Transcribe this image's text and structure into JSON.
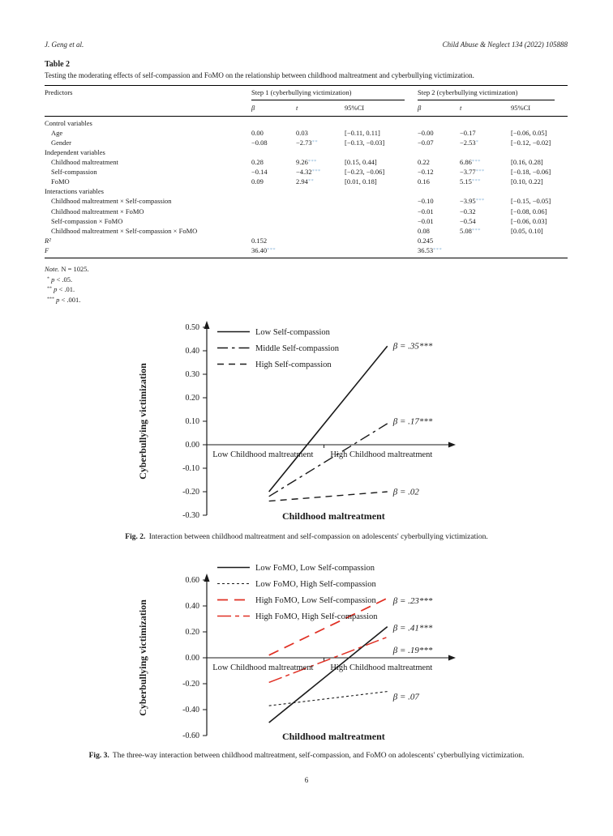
{
  "page": {
    "header_left": "J. Geng et al.",
    "header_right": "Child Abuse & Neglect 134 (2022) 105888",
    "page_number": "6"
  },
  "star_color": "#8fb8da",
  "table": {
    "title": "Table 2",
    "caption": "Testing the moderating effects of self-compassion and FoMO on the relationship between childhood maltreatment and cyberbullying victimization.",
    "col_predictors": "Predictors",
    "group1": "Step 1 (cyberbullying victimization)",
    "group2": "Step 2 (cyberbullying victimization)",
    "subheaders": [
      "β",
      "t",
      "95%CI",
      "β",
      "t",
      "95%CI"
    ],
    "rows": [
      {
        "label": "Control variables",
        "type": "section",
        "cells": [
          "",
          "",
          "",
          "",
          "",
          ""
        ]
      },
      {
        "label": "Age",
        "type": "item",
        "cells": [
          "0.00",
          "0.03",
          "[−0.11, 0.11]",
          "−0.00",
          "−0.17",
          "[−0.06, 0.05]"
        ]
      },
      {
        "label": "Gender",
        "type": "item",
        "cells": [
          "−0.08",
          "−2.73**",
          "[−0.13, −0.03]",
          "−0.07",
          "−2.53*",
          "[−0.12, −0.02]"
        ]
      },
      {
        "label": "Independent variables",
        "type": "section",
        "cells": [
          "",
          "",
          "",
          "",
          "",
          ""
        ]
      },
      {
        "label": "Childhood maltreatment",
        "type": "item",
        "cells": [
          "0.28",
          "9.26***",
          "[0.15, 0.44]",
          "0.22",
          "6.86***",
          "[0.16, 0.28]"
        ]
      },
      {
        "label": "Self-compassion",
        "type": "item",
        "cells": [
          "−0.14",
          "−4.32***",
          "[−0.23, −0.06]",
          "−0.12",
          "−3.77***",
          "[−0.18, −0.06]"
        ]
      },
      {
        "label": "FoMO",
        "type": "item",
        "cells": [
          "0.09",
          "2.94**",
          "[0.01, 0.18]",
          "0.16",
          "5.15***",
          "[0.10, 0.22]"
        ]
      },
      {
        "label": "Interactions variables",
        "type": "section",
        "cells": [
          "",
          "",
          "",
          "",
          "",
          ""
        ]
      },
      {
        "label": "Childhood maltreatment × Self-compassion",
        "type": "item",
        "cells": [
          "",
          "",
          "",
          "−0.10",
          "−3.95***",
          "[−0.15, −0.05]"
        ]
      },
      {
        "label": "Childhood maltreatment × FoMO",
        "type": "item",
        "cells": [
          "",
          "",
          "",
          "−0.01",
          "−0.32",
          "[−0.08, 0.06]"
        ]
      },
      {
        "label": "Self-compassion × FoMO",
        "type": "item",
        "cells": [
          "",
          "",
          "",
          "−0.01",
          "−0.54",
          "[−0.06, 0.03]"
        ]
      },
      {
        "label": "Childhood maltreatment × Self-compassion × FoMO",
        "type": "item",
        "cells": [
          "",
          "",
          "",
          "0.08",
          "5.08***",
          "[0.05, 0.10]"
        ]
      },
      {
        "label": "R²",
        "type": "stat",
        "cells": [
          "0.152",
          "",
          "",
          "0.245",
          "",
          ""
        ]
      },
      {
        "label": "F",
        "type": "stat",
        "cells": [
          "36.40***",
          "",
          "",
          "36.53***",
          "",
          ""
        ]
      }
    ],
    "note": {
      "label": "Note.",
      "text": "N = 1025."
    },
    "footnotes": [
      {
        "stars": "*",
        "var": "p",
        "text": "< .05."
      },
      {
        "stars": "**",
        "var": "p",
        "text": "< .01."
      },
      {
        "stars": "***",
        "var": "p",
        "text": "< .001."
      }
    ]
  },
  "chart_data": [
    {
      "type": "line",
      "fig_label": "Fig. 2.",
      "caption": "Interaction between childhood maltreatment and self-compassion on adolescents' cyberbullying victimization.",
      "xlabel": "Childhood maltreatment",
      "ylabel": "Cyberbullying victimization",
      "x_categories": [
        "Low Childhood maltreatment",
        "High Childhood maltreatment"
      ],
      "ylim": [
        -0.3,
        0.5
      ],
      "ytick_step": 0.1,
      "yticks": [
        "0.50",
        "0.40",
        "0.30",
        "0.20",
        "0.10",
        "0.00",
        "-0.10",
        "-0.20",
        "-0.30"
      ],
      "legend_position": "top-left",
      "grid": false,
      "series": [
        {
          "name": "Low Self-compassion",
          "style": "solid",
          "color": "#1a1a1a",
          "values": [
            -0.2,
            0.42
          ],
          "beta_label": "β = .35***",
          "label_y": 0.42
        },
        {
          "name": "Middle Self-compassion",
          "style": "dashdot",
          "color": "#1a1a1a",
          "values": [
            -0.22,
            0.09
          ],
          "beta_label": "β = .17***",
          "label_y": 0.1
        },
        {
          "name": "High Self-compassion",
          "style": "dashed",
          "color": "#1a1a1a",
          "values": [
            -0.24,
            -0.2
          ],
          "beta_label": "β = .02",
          "label_y": -0.2
        }
      ]
    },
    {
      "type": "line",
      "fig_label": "Fig. 3.",
      "caption": "The three-way interaction between childhood maltreatment, self-compassion, and FoMO on adolescents' cyberbullying victimization.",
      "xlabel": "Childhood maltreatment",
      "ylabel": "Cyberbullying victimization",
      "x_categories": [
        "Low Childhood maltreatment",
        "High Childhood maltreatment"
      ],
      "ylim": [
        -0.6,
        0.6
      ],
      "ytick_step": 0.2,
      "yticks": [
        "0.60",
        "0.40",
        "0.20",
        "0.00",
        "-0.20",
        "-0.40",
        "-0.60"
      ],
      "legend_position": "top-left",
      "grid": false,
      "series": [
        {
          "name": "Low FoMO, Low Self-compassion",
          "style": "solid",
          "color": "#1a1a1a",
          "values": [
            -0.5,
            0.24
          ],
          "beta_label": "β = .41***",
          "label_y": 0.23
        },
        {
          "name": "Low FoMO, High Self-compassion",
          "style": "dotted",
          "color": "#1a1a1a",
          "values": [
            -0.37,
            -0.26
          ],
          "beta_label": "β = .07",
          "label_y": -0.3
        },
        {
          "name": "High FoMO, Low Self-compassion",
          "style": "longdash",
          "color": "#e03024",
          "values": [
            0.02,
            0.46
          ],
          "beta_label": "β = .23***",
          "label_y": 0.44
        },
        {
          "name": "High FoMO, High Self-compassion",
          "style": "longdashdot",
          "color": "#e03024",
          "values": [
            -0.19,
            0.16
          ],
          "beta_label": "β = .19***",
          "label_y": 0.06
        }
      ]
    }
  ]
}
